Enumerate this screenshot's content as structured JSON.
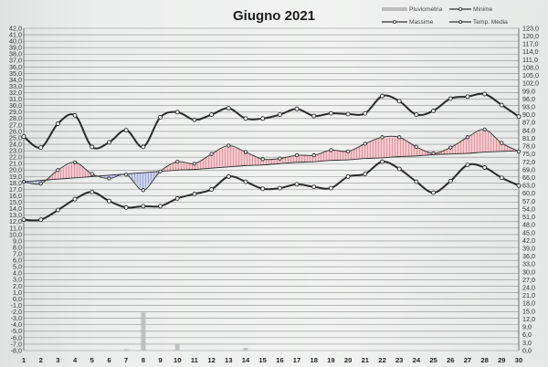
{
  "chart_data": {
    "type": "line",
    "title": "Giugno 2021",
    "legend": [
      {
        "key": "rain",
        "label": "Pluviometria"
      },
      {
        "key": "min",
        "label": "Minime"
      },
      {
        "key": "max",
        "label": "Massime"
      },
      {
        "key": "avg",
        "label": "Temp. Media"
      }
    ],
    "legend_position": "top-right",
    "grid": true,
    "x": [
      1,
      2,
      3,
      4,
      5,
      6,
      7,
      8,
      9,
      10,
      11,
      12,
      13,
      14,
      15,
      16,
      17,
      18,
      19,
      20,
      21,
      22,
      23,
      24,
      25,
      26,
      27,
      28,
      29,
      30
    ],
    "y_left_range": [
      -8.0,
      42.0
    ],
    "y_right_range": [
      0,
      123.0
    ],
    "y_left_ticks": [
      "42,0",
      "41,0",
      "40,0",
      "39,0",
      "38,0",
      "37,0",
      "36,0",
      "35,0",
      "34,0",
      "33,0",
      "32,0",
      "31,0",
      "30,0",
      "29,0",
      "28,0",
      "27,0",
      "26,0",
      "25,0",
      "24,0",
      "23,0",
      "22,0",
      "21,0",
      "20,0",
      "19,0",
      "18,0",
      "17,0",
      "16,0",
      "15,0",
      "14,0",
      "13,0",
      "12,0",
      "11,0",
      "10,0",
      "9,0",
      "8,0",
      "7,0",
      "6,0",
      "5,0",
      "4,0",
      "3,0",
      "2,0",
      "1,0",
      "0,0",
      "-1,0",
      "-2,0",
      "-3,0",
      "-4,0",
      "-5,0",
      "-6,0",
      "-7,0",
      "-8,0"
    ],
    "y_right_ticks": [
      "123,0",
      "120,0",
      "117,0",
      "114,0",
      "111,0",
      "108,0",
      "105,0",
      "102,0",
      "99,0",
      "96,0",
      "93,0",
      "90,0",
      "87,0",
      "84,0",
      "81,0",
      "78,0",
      "75,0",
      "72,0",
      "69,0",
      "66,0",
      "63,0",
      "60,0",
      "57,0",
      "54,0",
      "51,0",
      "48,0",
      "45,0",
      "42,0",
      "39,0",
      "36,0",
      "33,0",
      "30,0",
      "27,0",
      "24,0",
      "21,0",
      "18,0",
      "15,0",
      "12,0",
      "9,0",
      "6,0",
      "3,0",
      "0,0"
    ],
    "series": [
      {
        "key": "max",
        "name": "Massime",
        "values": [
          25.2,
          23.5,
          27.2,
          28.5,
          23.6,
          24.3,
          26.2,
          23.6,
          28.2,
          29.0,
          27.8,
          28.6,
          29.6,
          28.0,
          28.0,
          28.6,
          29.5,
          28.4,
          28.8,
          28.7,
          28.8,
          31.5,
          30.7,
          28.6,
          29.2,
          31.1,
          31.4,
          31.8,
          30.1,
          28.3
        ]
      },
      {
        "key": "min",
        "name": "Minime",
        "values": [
          12.3,
          12.3,
          13.8,
          15.5,
          16.6,
          15.2,
          14.2,
          14.4,
          14.4,
          15.6,
          16.3,
          17.0,
          19.0,
          18.2,
          17.1,
          17.2,
          17.8,
          17.4,
          17.2,
          19.0,
          19.4,
          21.3,
          20.2,
          18.2,
          16.5,
          18.3,
          20.8,
          20.4,
          18.8,
          17.6
        ]
      },
      {
        "key": "avg",
        "name": "Temp. Media",
        "values": [
          18.2,
          17.9,
          20.0,
          21.2,
          19.4,
          18.7,
          19.3,
          16.9,
          19.8,
          21.3,
          21.0,
          22.5,
          23.8,
          22.8,
          21.7,
          21.8,
          22.3,
          22.3,
          23.1,
          22.9,
          24.1,
          25.1,
          25.1,
          23.6,
          22.6,
          23.5,
          25.1,
          26.3,
          24.2,
          22.9
        ]
      },
      {
        "key": "trend",
        "name": "",
        "values": [
          18.2,
          18.4,
          18.6,
          18.8,
          19.0,
          19.2,
          19.4,
          19.6,
          19.8,
          20.0,
          20.1,
          20.3,
          20.5,
          20.7,
          20.8,
          21.0,
          21.2,
          21.3,
          21.5,
          21.6,
          21.8,
          21.9,
          22.1,
          22.2,
          22.4,
          22.5,
          22.6,
          22.8,
          22.9,
          23.0
        ]
      },
      {
        "key": "rain",
        "name": "Pluviometria",
        "axis": "right",
        "values": [
          0,
          0,
          0,
          0,
          0,
          0,
          0.5,
          14.5,
          0,
          2.5,
          0,
          0,
          0,
          1.0,
          0,
          0,
          0,
          0,
          0,
          0,
          0,
          0,
          0,
          0,
          0,
          0,
          0,
          0,
          0,
          0
        ]
      }
    ],
    "colors": {
      "lines": "#2a2a2a",
      "grid": "#8e8e8e",
      "above": "#c23a4a",
      "below": "#4f5aa8",
      "rain": "#b9b9b9"
    }
  }
}
